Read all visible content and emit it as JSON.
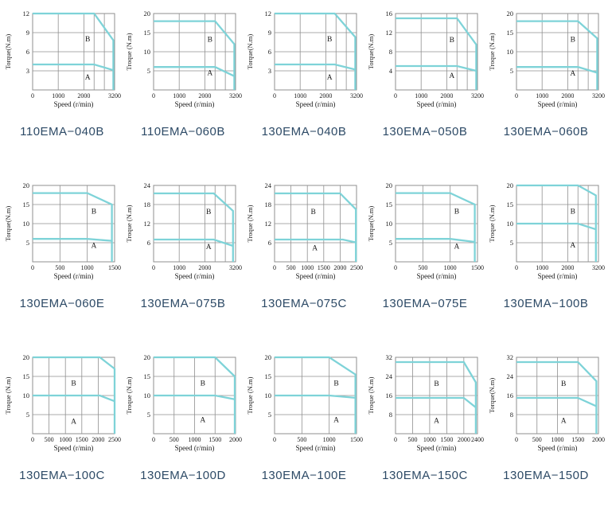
{
  "page": {
    "description": "Torque-speed characteristic curves for EMA series servo motors"
  },
  "styles": {
    "curve_color": "#7ed3d8",
    "grid_color": "#8f8f8f",
    "title_color": "#2d4a66",
    "axis_text_color": "#1a1a1a",
    "background": "#ffffff"
  },
  "chart_data": [
    {
      "type": "line",
      "title": "110EMA−040B",
      "ylabel": "Torque(N.m)",
      "xlabel": "Speed (r/min)",
      "ylim": [
        0,
        12
      ],
      "yticks": [
        3,
        6,
        9,
        12
      ],
      "xlim": [
        0,
        3200
      ],
      "xticks": [
        0,
        1000,
        2000,
        3200
      ],
      "xgrid": [
        1000,
        2000,
        2400,
        2800
      ],
      "grid": true,
      "series": [
        {
          "name": "B",
          "points": [
            [
              0,
              12
            ],
            [
              2400,
              12
            ],
            [
              3150,
              7.8
            ],
            [
              3150,
              0
            ]
          ]
        },
        {
          "name": "A",
          "points": [
            [
              0,
              4
            ],
            [
              2400,
              4
            ],
            [
              3150,
              3.1
            ]
          ]
        }
      ],
      "labels": [
        {
          "text": "B",
          "x": 2150,
          "y": 7.6
        },
        {
          "text": "A",
          "x": 2150,
          "y": 1.6
        }
      ]
    },
    {
      "type": "line",
      "title": "110EMA−060B",
      "ylabel": "Troque (N.m)",
      "xlabel": "Speed (r/min)",
      "ylim": [
        0,
        20
      ],
      "yticks": [
        5,
        10,
        15,
        20
      ],
      "xlim": [
        0,
        3200
      ],
      "xticks": [
        0,
        1000,
        2000,
        3200
      ],
      "xgrid": [
        1000,
        2000,
        2400,
        2800
      ],
      "grid": true,
      "series": [
        {
          "name": "B",
          "points": [
            [
              0,
              18
            ],
            [
              2400,
              18
            ],
            [
              3150,
              12
            ],
            [
              3150,
              0
            ]
          ]
        },
        {
          "name": "A",
          "points": [
            [
              0,
              6
            ],
            [
              2400,
              6
            ],
            [
              3150,
              3.6
            ]
          ]
        }
      ],
      "labels": [
        {
          "text": "B",
          "x": 2200,
          "y": 12.6
        },
        {
          "text": "A",
          "x": 2200,
          "y": 3.9
        }
      ]
    },
    {
      "type": "line",
      "title": "130EMA−040B",
      "ylabel": "Torque(N.m)",
      "xlabel": "Speed (r/min)",
      "ylim": [
        0,
        12
      ],
      "yticks": [
        3,
        6,
        9,
        12
      ],
      "xlim": [
        0,
        3200
      ],
      "xticks": [
        0,
        1000,
        2000,
        3200
      ],
      "xgrid": [
        1000,
        2000,
        2400,
        2800
      ],
      "grid": true,
      "series": [
        {
          "name": "B",
          "points": [
            [
              0,
              12
            ],
            [
              2350,
              12
            ],
            [
              3150,
              8.3
            ],
            [
              3150,
              0
            ]
          ]
        },
        {
          "name": "A",
          "points": [
            [
              0,
              4
            ],
            [
              2350,
              4
            ],
            [
              3150,
              3.2
            ]
          ]
        }
      ],
      "labels": [
        {
          "text": "B",
          "x": 2150,
          "y": 7.6
        },
        {
          "text": "A",
          "x": 2150,
          "y": 1.6
        }
      ]
    },
    {
      "type": "line",
      "title": "130EMA−050B",
      "ylabel": "Torque(N.m)",
      "xlabel": "Speed (r/min)",
      "ylim": [
        0,
        16
      ],
      "yticks": [
        4,
        8,
        12,
        16
      ],
      "xlim": [
        0,
        3200
      ],
      "xticks": [
        0,
        1000,
        2000,
        3200
      ],
      "xgrid": [
        1000,
        2000,
        2400,
        2800
      ],
      "grid": true,
      "series": [
        {
          "name": "B",
          "points": [
            [
              0,
              15
            ],
            [
              2400,
              15
            ],
            [
              3150,
              9.5
            ],
            [
              3150,
              0
            ]
          ]
        },
        {
          "name": "A",
          "points": [
            [
              0,
              5
            ],
            [
              2400,
              5
            ],
            [
              3150,
              4
            ]
          ]
        }
      ],
      "labels": [
        {
          "text": "B",
          "x": 2200,
          "y": 10
        },
        {
          "text": "A",
          "x": 2200,
          "y": 2.5
        }
      ]
    },
    {
      "type": "line",
      "title": "130EMA−060B",
      "ylabel": "Troque (N.m)",
      "xlabel": "Speed (r/min)",
      "ylim": [
        0,
        20
      ],
      "yticks": [
        5,
        10,
        15,
        20
      ],
      "xlim": [
        0,
        3200
      ],
      "xticks": [
        0,
        1000,
        2000,
        3200
      ],
      "xgrid": [
        1000,
        2000,
        2400,
        2800
      ],
      "grid": true,
      "series": [
        {
          "name": "B",
          "points": [
            [
              0,
              18
            ],
            [
              2400,
              18
            ],
            [
              3150,
              13.5
            ],
            [
              3150,
              0
            ]
          ]
        },
        {
          "name": "A",
          "points": [
            [
              0,
              6
            ],
            [
              2400,
              6
            ],
            [
              3150,
              4.5
            ]
          ]
        }
      ],
      "labels": [
        {
          "text": "B",
          "x": 2200,
          "y": 12.6
        },
        {
          "text": "A",
          "x": 2200,
          "y": 3.7
        }
      ]
    },
    {
      "type": "line",
      "title": "130EMA−060E",
      "ylabel": "Torque(N.m)",
      "xlabel": "Speed (r/min)",
      "ylim": [
        0,
        20
      ],
      "yticks": [
        5,
        10,
        15,
        20
      ],
      "xlim": [
        0,
        1500
      ],
      "xticks": [
        0,
        500,
        1000,
        1500
      ],
      "xgrid": [
        500,
        1000
      ],
      "grid": true,
      "series": [
        {
          "name": "B",
          "points": [
            [
              0,
              18
            ],
            [
              1000,
              18
            ],
            [
              1450,
              15
            ],
            [
              1450,
              0
            ]
          ]
        },
        {
          "name": "A",
          "points": [
            [
              0,
              6
            ],
            [
              1000,
              6
            ],
            [
              1450,
              5.5
            ]
          ]
        }
      ],
      "labels": [
        {
          "text": "B",
          "x": 1120,
          "y": 12.6
        },
        {
          "text": "A",
          "x": 1120,
          "y": 3.6
        }
      ]
    },
    {
      "type": "line",
      "title": "130EMA−075B",
      "ylabel": "Troque (N.m)",
      "xlabel": "Speed (r/min)",
      "ylim": [
        0,
        24
      ],
      "yticks": [
        6,
        12,
        18,
        24
      ],
      "xlim": [
        0,
        3200
      ],
      "xticks": [
        0,
        1000,
        2000,
        3200
      ],
      "xgrid": [
        1000,
        2000,
        2400,
        2800
      ],
      "grid": true,
      "series": [
        {
          "name": "B",
          "points": [
            [
              0,
              21.5
            ],
            [
              2350,
              21.5
            ],
            [
              3100,
              16
            ],
            [
              3100,
              0
            ]
          ]
        },
        {
          "name": "A",
          "points": [
            [
              0,
              7
            ],
            [
              2350,
              7
            ],
            [
              3100,
              5
            ]
          ]
        }
      ],
      "labels": [
        {
          "text": "B",
          "x": 2150,
          "y": 15
        },
        {
          "text": "A",
          "x": 2150,
          "y": 4
        }
      ]
    },
    {
      "type": "line",
      "title": "130EMA−075C",
      "ylabel": "Troque (N.m)",
      "xlabel": "Speed (r/min)",
      "ylim": [
        0,
        24
      ],
      "yticks": [
        6,
        12,
        18,
        24
      ],
      "xlim": [
        0,
        2500
      ],
      "xticks": [
        0,
        500,
        1000,
        1500,
        2000,
        2500
      ],
      "xgrid": [
        500,
        1000,
        1500,
        2000
      ],
      "grid": true,
      "series": [
        {
          "name": "B",
          "points": [
            [
              0,
              21.5
            ],
            [
              2000,
              21.5
            ],
            [
              2480,
              16.5
            ],
            [
              2480,
              0
            ]
          ]
        },
        {
          "name": "A",
          "points": [
            [
              0,
              7
            ],
            [
              2080,
              7
            ],
            [
              2480,
              6.1
            ]
          ]
        }
      ],
      "labels": [
        {
          "text": "B",
          "x": 1180,
          "y": 15
        },
        {
          "text": "A",
          "x": 1230,
          "y": 3.6
        }
      ]
    },
    {
      "type": "line",
      "title": "130EMA−075E",
      "ylabel": "Torque(N.m)",
      "xlabel": "Speed (r/min)",
      "ylim": [
        0,
        20
      ],
      "yticks": [
        5,
        10,
        15,
        20
      ],
      "xlim": [
        0,
        1500
      ],
      "xticks": [
        0,
        500,
        1000,
        1500
      ],
      "xgrid": [
        500,
        1000
      ],
      "grid": true,
      "series": [
        {
          "name": "B",
          "points": [
            [
              0,
              18
            ],
            [
              1000,
              18
            ],
            [
              1450,
              15
            ],
            [
              1450,
              0
            ]
          ]
        },
        {
          "name": "A",
          "points": [
            [
              0,
              6
            ],
            [
              1000,
              6
            ],
            [
              1450,
              5.2
            ]
          ]
        }
      ],
      "labels": [
        {
          "text": "B",
          "x": 1120,
          "y": 12.6
        },
        {
          "text": "A",
          "x": 1120,
          "y": 3.4
        }
      ]
    },
    {
      "type": "line",
      "title": "130EMA−100B",
      "ylabel": "Troque (N.m)",
      "xlabel": "Speed (r/min)",
      "ylim": [
        0,
        20
      ],
      "yticks": [
        5,
        10,
        15,
        20
      ],
      "xlim": [
        0,
        3200
      ],
      "xticks": [
        0,
        1000,
        2000,
        3200
      ],
      "xgrid": [
        1000,
        2000,
        2400,
        2800
      ],
      "grid": true,
      "series": [
        {
          "name": "B",
          "points": [
            [
              0,
              20
            ],
            [
              2400,
              20
            ],
            [
              3100,
              17.4
            ],
            [
              3100,
              0
            ]
          ]
        },
        {
          "name": "A",
          "points": [
            [
              0,
              10
            ],
            [
              2400,
              10
            ],
            [
              3100,
              8.5
            ]
          ]
        }
      ],
      "labels": [
        {
          "text": "B",
          "x": 2200,
          "y": 12.6
        },
        {
          "text": "A",
          "x": 2200,
          "y": 3.7
        }
      ]
    },
    {
      "type": "line",
      "title": "130EMA−100C",
      "ylabel": "Troque (N.m)",
      "xlabel": "Speed (r/min)",
      "ylim": [
        0,
        20
      ],
      "yticks": [
        5,
        10,
        15,
        20
      ],
      "xlim": [
        0,
        2500
      ],
      "xticks": [
        0,
        500,
        1000,
        1500,
        2000,
        2500
      ],
      "xgrid": [
        500,
        1000,
        1500,
        2000
      ],
      "grid": true,
      "series": [
        {
          "name": "B",
          "points": [
            [
              0,
              20
            ],
            [
              2050,
              20
            ],
            [
              2500,
              17
            ],
            [
              2500,
              0
            ]
          ]
        },
        {
          "name": "A",
          "points": [
            [
              0,
              10
            ],
            [
              2050,
              10
            ],
            [
              2500,
              8.5
            ]
          ]
        }
      ],
      "labels": [
        {
          "text": "B",
          "x": 1250,
          "y": 12.6
        },
        {
          "text": "A",
          "x": 1250,
          "y": 2.6
        }
      ]
    },
    {
      "type": "line",
      "title": "130EMA−100D",
      "ylabel": "Troque (N.m)",
      "xlabel": "Speed (r/min)",
      "ylim": [
        0,
        20
      ],
      "yticks": [
        5,
        10,
        15,
        20
      ],
      "xlim": [
        0,
        2000
      ],
      "xticks": [
        0,
        500,
        1000,
        1500,
        2000
      ],
      "xgrid": [
        500,
        1000,
        1500
      ],
      "grid": true,
      "series": [
        {
          "name": "B",
          "points": [
            [
              0,
              20
            ],
            [
              1500,
              20
            ],
            [
              1980,
              15
            ],
            [
              1980,
              0
            ]
          ]
        },
        {
          "name": "A",
          "points": [
            [
              0,
              10
            ],
            [
              1500,
              10
            ],
            [
              1980,
              9
            ]
          ]
        }
      ],
      "labels": [
        {
          "text": "B",
          "x": 1200,
          "y": 12.6
        },
        {
          "text": "A",
          "x": 1200,
          "y": 3
        }
      ]
    },
    {
      "type": "line",
      "title": "130EMA−100E",
      "ylabel": "Troque (N.m)",
      "xlabel": "Speed (r/min)",
      "ylim": [
        0,
        20
      ],
      "yticks": [
        5,
        10,
        15,
        20
      ],
      "xlim": [
        0,
        1500
      ],
      "xticks": [
        0,
        500,
        1000,
        1500
      ],
      "xgrid": [
        500,
        1000
      ],
      "grid": true,
      "series": [
        {
          "name": "B",
          "points": [
            [
              0,
              20
            ],
            [
              1000,
              20
            ],
            [
              1480,
              15.5
            ],
            [
              1480,
              0
            ]
          ]
        },
        {
          "name": "A",
          "points": [
            [
              0,
              10
            ],
            [
              1000,
              10
            ],
            [
              1480,
              9.4
            ]
          ]
        }
      ],
      "labels": [
        {
          "text": "B",
          "x": 1130,
          "y": 12.6
        },
        {
          "text": "A",
          "x": 1130,
          "y": 3
        }
      ]
    },
    {
      "type": "line",
      "title": "130EMA−150C",
      "ylabel": "Troque (N.m)",
      "xlabel": "Speed (r/min)",
      "ylim": [
        0,
        32
      ],
      "yticks": [
        8,
        16,
        24,
        32
      ],
      "xlim": [
        0,
        2400
      ],
      "xticks": [
        0,
        500,
        1000,
        1500,
        2000,
        2400
      ],
      "xgrid": [
        500,
        1000,
        1500,
        2000
      ],
      "grid": true,
      "series": [
        {
          "name": "B",
          "points": [
            [
              0,
              30
            ],
            [
              2000,
              30
            ],
            [
              2350,
              21.5
            ],
            [
              2350,
              0
            ]
          ]
        },
        {
          "name": "A",
          "points": [
            [
              0,
              15
            ],
            [
              2000,
              15
            ],
            [
              2350,
              11
            ]
          ]
        }
      ],
      "labels": [
        {
          "text": "B",
          "x": 1200,
          "y": 20
        },
        {
          "text": "A",
          "x": 1200,
          "y": 4.5
        }
      ]
    },
    {
      "type": "line",
      "title": "130EMA−150D",
      "ylabel": "Torque(N.m)",
      "xlabel": "Speed (r/min)",
      "ylim": [
        0,
        32
      ],
      "yticks": [
        8,
        16,
        24,
        32
      ],
      "xlim": [
        0,
        2000
      ],
      "xticks": [
        0,
        500,
        1000,
        1500,
        2000
      ],
      "xgrid": [
        500,
        1000,
        1500
      ],
      "grid": true,
      "series": [
        {
          "name": "B",
          "points": [
            [
              0,
              30
            ],
            [
              1500,
              30
            ],
            [
              1950,
              22
            ],
            [
              1950,
              0
            ]
          ]
        },
        {
          "name": "A",
          "points": [
            [
              0,
              15
            ],
            [
              1500,
              15
            ],
            [
              1950,
              11.5
            ]
          ]
        }
      ],
      "labels": [
        {
          "text": "B",
          "x": 1150,
          "y": 20
        },
        {
          "text": "A",
          "x": 1150,
          "y": 4.5
        }
      ]
    }
  ]
}
